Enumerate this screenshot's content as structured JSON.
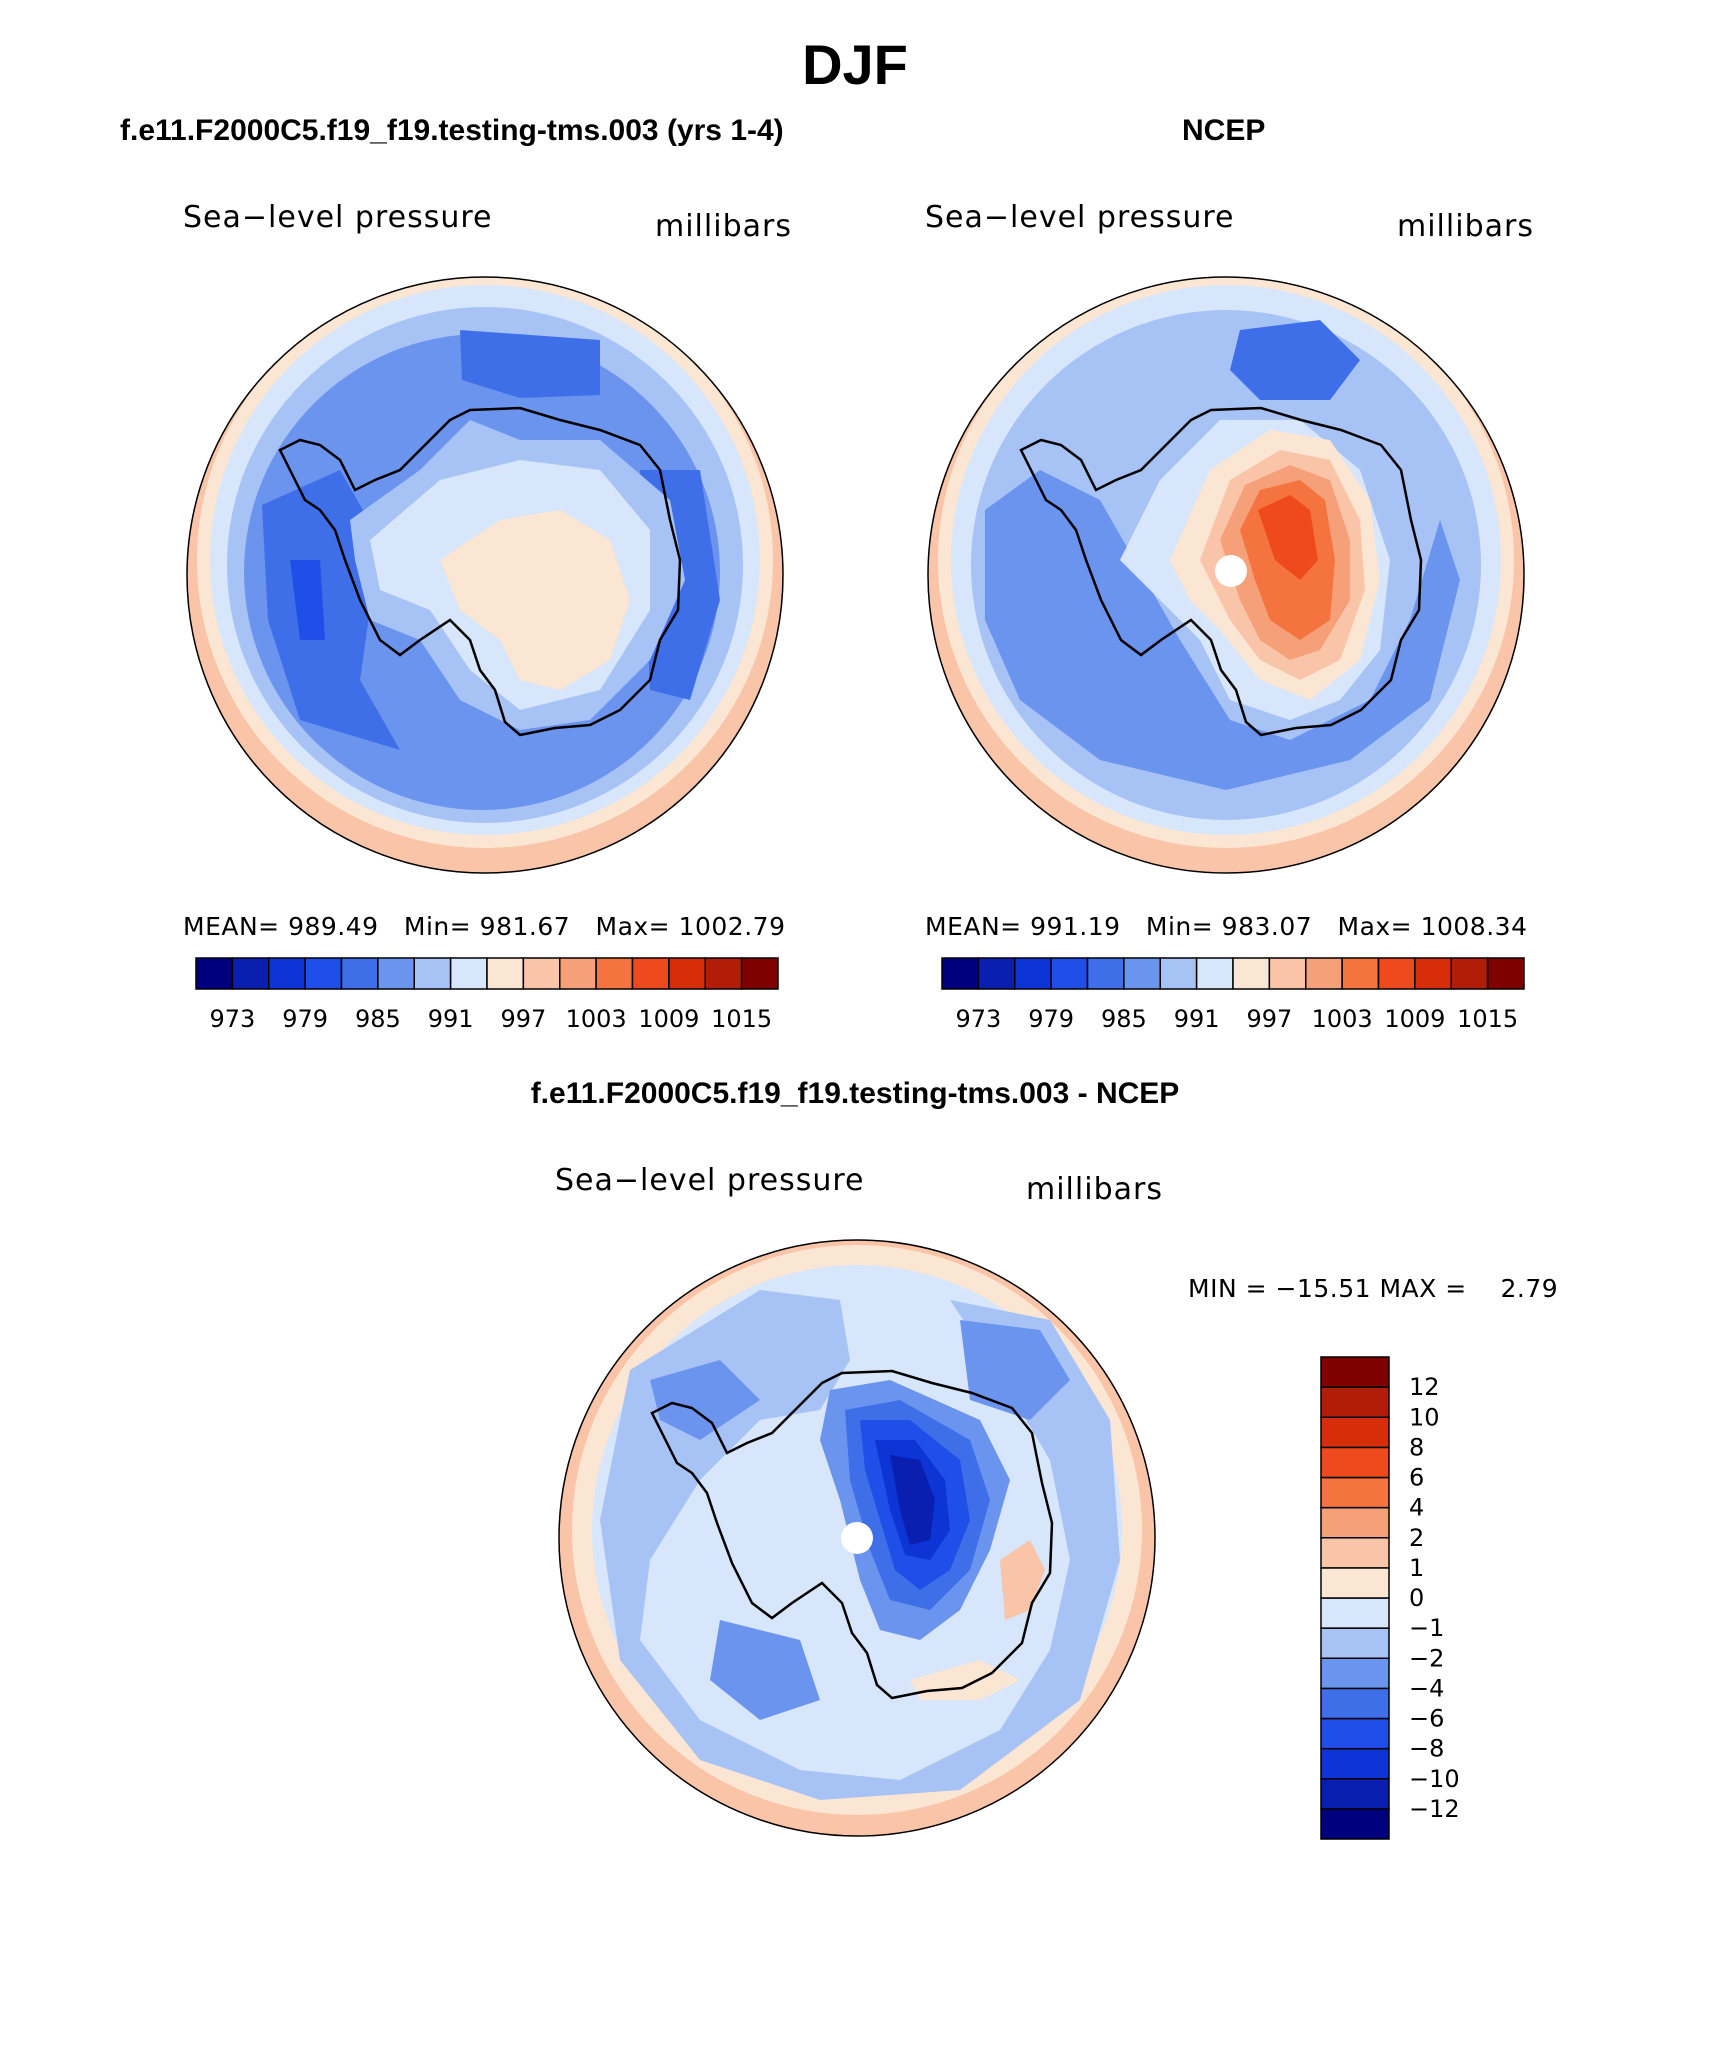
{
  "season": "DJF",
  "left_panel_title": "f.e11.F2000C5.f19_f19.testing-tms.003 (yrs 1-4)",
  "right_panel_title": "NCEP",
  "diff_panel_title": "f.e11.F2000C5.f19_f19.testing-tms.003 - NCEP",
  "variable": "Sea−level pressure",
  "units": "millibars",
  "model": {
    "stats": {
      "mean_label": "MEAN=",
      "mean": "989.49",
      "min_label": "Min=",
      "min": "981.67",
      "max_label": "Max=",
      "max": "1002.79"
    }
  },
  "obs": {
    "stats": {
      "mean_label": "MEAN=",
      "mean": "991.19",
      "min_label": "Min=",
      "min": "983.07",
      "max_label": "Max=",
      "max": "1008.34"
    }
  },
  "diff": {
    "min_label": "MIN =",
    "min": "−15.51",
    "max_label": "MAX =",
    "max": "2.79"
  },
  "abs_colorbar": {
    "colors": [
      "#00007f",
      "#0a1fb0",
      "#0d35d6",
      "#1f4fe8",
      "#3e6fe8",
      "#6b94ee",
      "#a7c2f5",
      "#d7e6fb",
      "#fbe6d3",
      "#f9c4a8",
      "#f6a07a",
      "#f4733e",
      "#ee4a1c",
      "#d72e0a",
      "#b21d0a",
      "#800000"
    ],
    "labels": [
      "973",
      "979",
      "985",
      "991",
      "997",
      "1003",
      "1009",
      "1015"
    ]
  },
  "diff_colorbar": {
    "colors": [
      "#00007f",
      "#0a1fb0",
      "#0d35d6",
      "#1f4fe8",
      "#3e6fe8",
      "#6b94ee",
      "#a7c2f5",
      "#d7e6fb",
      "#fbe6d3",
      "#f9c4a8",
      "#f6a07a",
      "#f4733e",
      "#ee4a1c",
      "#d72e0a",
      "#b21d0a",
      "#800000"
    ],
    "labels": [
      "−12",
      "−10",
      "−8",
      "−6",
      "−4",
      "−2",
      "−1",
      "0",
      "1",
      "2",
      "4",
      "6",
      "8",
      "10",
      "12"
    ]
  },
  "chart_data": [
    {
      "type": "heatmap",
      "title": "f.e11.F2000C5.f19_f19.testing-tms.003 (yrs 1-4)",
      "variable": "Sea−level pressure",
      "units": "millibars",
      "projection": "south-polar stereographic",
      "mean": 989.49,
      "min": 981.67,
      "max": 1002.79,
      "levels": [
        973,
        976,
        979,
        982,
        985,
        988,
        991,
        994,
        997,
        1000,
        1003,
        1006,
        1009,
        1012,
        1015
      ]
    },
    {
      "type": "heatmap",
      "title": "NCEP",
      "variable": "Sea−level pressure",
      "units": "millibars",
      "projection": "south-polar stereographic",
      "mean": 991.19,
      "min": 983.07,
      "max": 1008.34,
      "levels": [
        973,
        976,
        979,
        982,
        985,
        988,
        991,
        994,
        997,
        1000,
        1003,
        1006,
        1009,
        1012,
        1015
      ]
    },
    {
      "type": "heatmap",
      "title": "f.e11.F2000C5.f19_f19.testing-tms.003 - NCEP",
      "variable": "Sea−level pressure",
      "units": "millibars",
      "projection": "south-polar stereographic",
      "min": -15.51,
      "max": 2.79,
      "levels": [
        -12,
        -10,
        -8,
        -6,
        -4,
        -2,
        -1,
        0,
        1,
        2,
        4,
        6,
        8,
        10,
        12
      ]
    }
  ]
}
